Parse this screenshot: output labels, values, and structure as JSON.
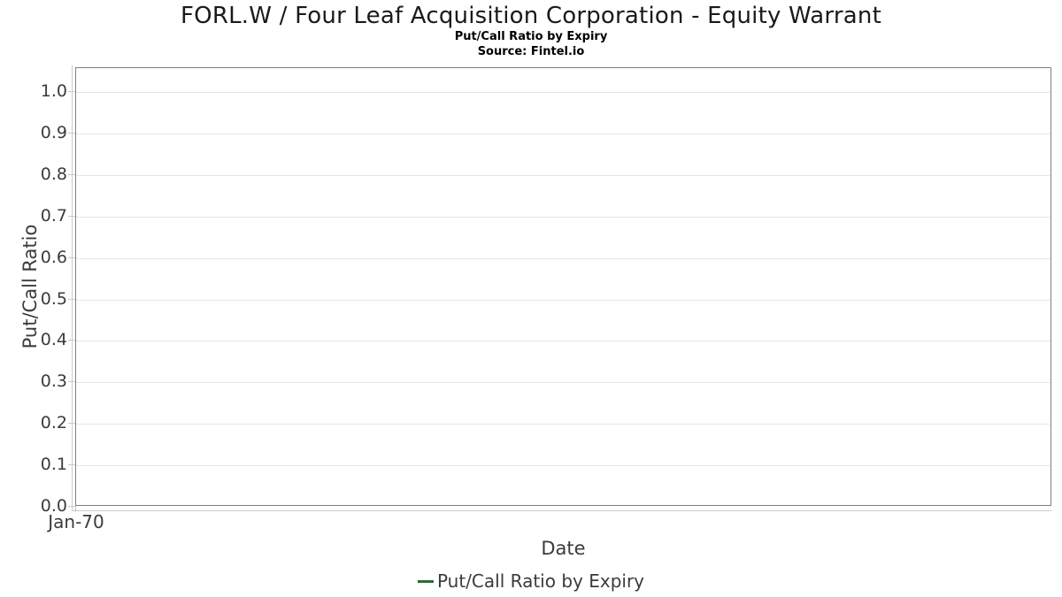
{
  "chart_data": {
    "type": "line",
    "title": "FORL.W / Four Leaf Acquisition Corporation - Equity Warrant",
    "subtitle": "Put/Call Ratio by Expiry",
    "source": "Source: Fintel.io",
    "xlabel": "Date",
    "ylabel": "Put/Call Ratio",
    "yticks": [
      "1.0",
      "0.9",
      "0.8",
      "0.7",
      "0.6",
      "0.5",
      "0.4",
      "0.3",
      "0.2",
      "0.1",
      "0.0"
    ],
    "xticks": [
      "Jan-70"
    ],
    "ylim": [
      0,
      1.05
    ],
    "grid": true,
    "legend_position": "bottom-center",
    "series": [
      {
        "name": "Put/Call Ratio by Expiry",
        "color": "#2d6a3c",
        "x": [],
        "values": []
      }
    ],
    "colors": {
      "plot_border": "#808080",
      "gridline": "#e6e6e6",
      "axis_line": "#cccccc",
      "text": "#3b3b3b",
      "title_text": "#1a1a1a"
    }
  }
}
